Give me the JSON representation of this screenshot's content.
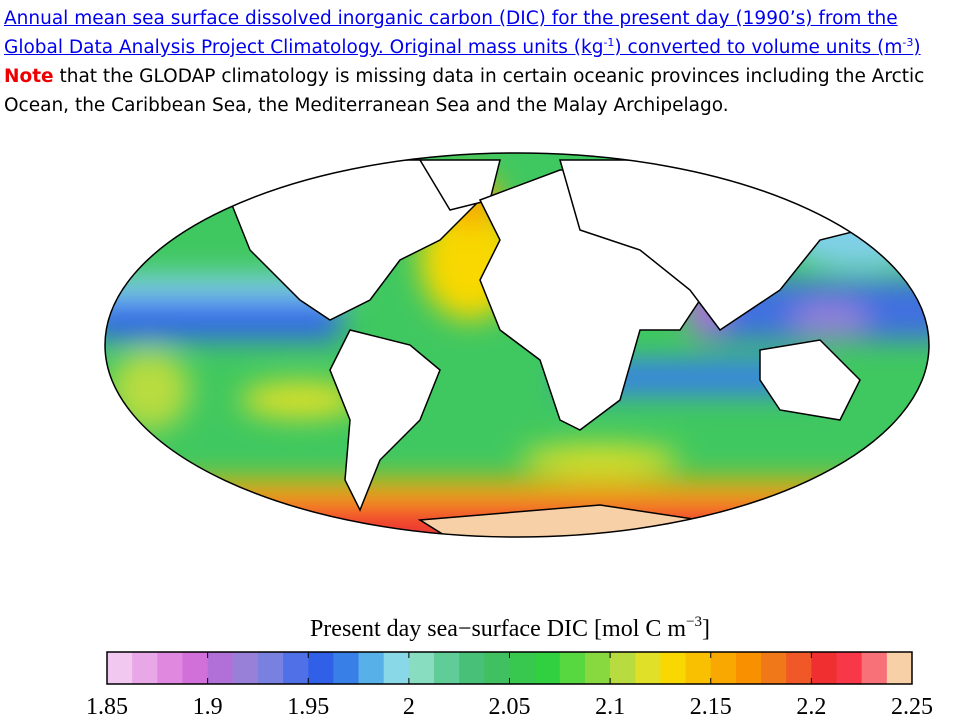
{
  "caption": {
    "parts": [
      "Annual mean sea surface dissolved inorganic carbon (DIC) for the present day (1990’s) from the Global Data Analysis Project Climatology. Original mass units (kg",
      "-1",
      ") converted to volume units (m",
      "-3",
      ")"
    ]
  },
  "note": {
    "label": "Note",
    "text": " that the GLODAP climatology is missing data in certain oceanic provinces including the Arctic Ocean, the Caribbean Sea, the Mediterranean Sea and the Malay Archipelago."
  },
  "colorbar": {
    "title_parts": [
      "Present day sea−surface DIC [mol C m",
      "−3",
      "]"
    ],
    "xlim": [
      1.85,
      2.25
    ],
    "xticks": [
      1.85,
      1.9,
      1.95,
      2,
      2.05,
      2.1,
      2.15,
      2.2,
      2.25
    ],
    "colors": [
      "#f0c8f0",
      "#e8a8e8",
      "#e088e0",
      "#d070d8",
      "#b070d8",
      "#9880d8",
      "#7880e0",
      "#5070e8",
      "#3060e8",
      "#3880e8",
      "#58b0e8",
      "#88d8e8",
      "#88dcc0",
      "#60cc98",
      "#48c078",
      "#40c060",
      "#38c850",
      "#30d040",
      "#58d840",
      "#88d840",
      "#b8dc40",
      "#e0e028",
      "#f8d800",
      "#f8c000",
      "#f8a800",
      "#f89000",
      "#f07818",
      "#f05828",
      "#f03030",
      "#f83848",
      "#f87078",
      "#f8d0a8"
    ]
  }
}
